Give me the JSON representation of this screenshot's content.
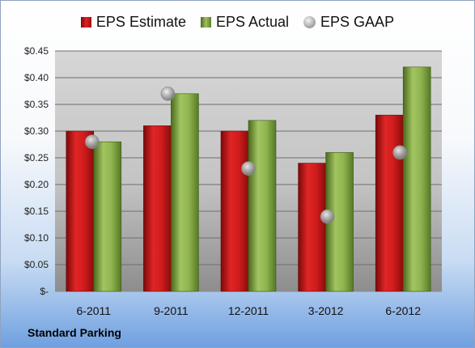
{
  "chart_data": {
    "type": "bar",
    "categories": [
      "6-2011",
      "9-2011",
      "12-2011",
      "3-2012",
      "6-2012"
    ],
    "series": [
      {
        "name": "EPS Estimate",
        "values": [
          0.3,
          0.31,
          0.3,
          0.24,
          0.33
        ],
        "color": "#cc1a1a",
        "mark": "bar"
      },
      {
        "name": "EPS Actual",
        "values": [
          0.28,
          0.37,
          0.32,
          0.26,
          0.42
        ],
        "color": "#7ea63c",
        "mark": "bar"
      },
      {
        "name": "EPS GAAP",
        "values": [
          0.28,
          0.37,
          0.23,
          0.14,
          0.26
        ],
        "color": "#a8a8a8",
        "mark": "circle"
      }
    ],
    "y_ticks": [
      {
        "value": 0.0,
        "label": "$-"
      },
      {
        "value": 0.05,
        "label": "$0.05"
      },
      {
        "value": 0.1,
        "label": "$0.10"
      },
      {
        "value": 0.15,
        "label": "$0.15"
      },
      {
        "value": 0.2,
        "label": "$0.20"
      },
      {
        "value": 0.25,
        "label": "$0.25"
      },
      {
        "value": 0.3,
        "label": "$0.30"
      },
      {
        "value": 0.35,
        "label": "$0.35"
      },
      {
        "value": 0.4,
        "label": "$0.40"
      },
      {
        "value": 0.45,
        "label": "$0.45"
      }
    ],
    "ylim": [
      0,
      0.45
    ],
    "grid": true,
    "legend_position": "top",
    "company": "Standard Parking"
  }
}
